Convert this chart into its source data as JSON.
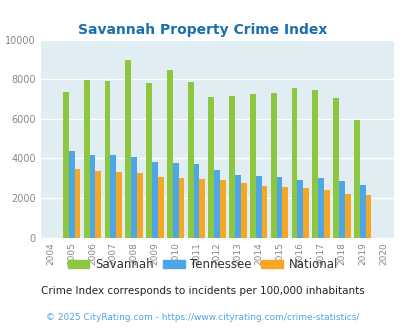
{
  "title": "Savannah Property Crime Index",
  "title_color": "#1a6faf",
  "years": [
    2004,
    2005,
    2006,
    2007,
    2008,
    2009,
    2010,
    2011,
    2012,
    2013,
    2014,
    2015,
    2016,
    2017,
    2018,
    2019,
    2020
  ],
  "savannah": [
    null,
    7350,
    7950,
    7900,
    8950,
    7800,
    8450,
    7850,
    7100,
    7150,
    7250,
    7300,
    7550,
    7450,
    7050,
    5950,
    null
  ],
  "tennessee": [
    null,
    4350,
    4150,
    4150,
    4050,
    3800,
    3750,
    3700,
    3400,
    3150,
    3100,
    3050,
    2900,
    3000,
    2850,
    2650,
    null
  ],
  "national": [
    null,
    3450,
    3350,
    3300,
    3250,
    3050,
    3000,
    2950,
    2900,
    2750,
    2600,
    2550,
    2500,
    2400,
    2200,
    2150,
    null
  ],
  "savannah_color": "#8dc63f",
  "tennessee_color": "#4da6e8",
  "national_color": "#f5a623",
  "bg_color": "#e0eef4",
  "ylim": [
    0,
    10000
  ],
  "yticks": [
    0,
    2000,
    4000,
    6000,
    8000,
    10000
  ],
  "footnote1": "Crime Index corresponds to incidents per 100,000 inhabitants",
  "footnote2": "© 2025 CityRating.com - https://www.cityrating.com/crime-statistics/",
  "footnote1_color": "#222222",
  "footnote2_color": "#4da6e8",
  "bar_width": 0.28
}
